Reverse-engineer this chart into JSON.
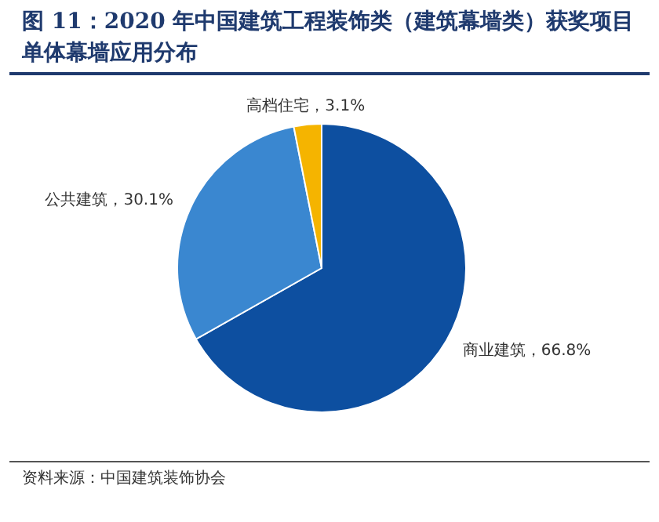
{
  "chart_data": {
    "type": "pie",
    "title": "图 11：2020 年中国建筑工程装饰类（建筑幕墙类）获奖项目单体幕墙应用分布",
    "categories": [
      "商业建筑",
      "公共建筑",
      "高档住宅"
    ],
    "values": [
      66.8,
      30.1,
      3.1
    ],
    "value_labels": [
      "66.8%",
      "30.1%",
      "3.1%"
    ],
    "colors": [
      "#0d4fa0",
      "#3a87d0",
      "#f5b400"
    ],
    "annotations": [
      "资料来源：中国建筑装饰协会"
    ]
  }
}
